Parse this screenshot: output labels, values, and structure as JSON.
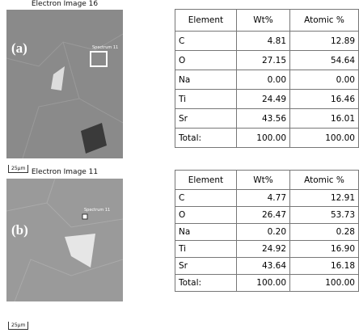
{
  "panels": [
    {
      "label": "(a)",
      "image": {
        "title": "Electron Image 16",
        "spectrum": "Spectrum 11",
        "scale": "25µm"
      },
      "table": {
        "header": [
          "Element",
          "Wt%",
          "Atomic %"
        ],
        "rows": [
          [
            "C",
            "4.81",
            "12.89"
          ],
          [
            "O",
            "27.15",
            "54.64"
          ],
          [
            "Na",
            "0.00",
            "0.00"
          ],
          [
            "Ti",
            "24.49",
            "16.46"
          ],
          [
            "Sr",
            "43.56",
            "16.01"
          ],
          [
            "Total:",
            "100.00",
            "100.00"
          ]
        ]
      }
    },
    {
      "label": "(b)",
      "image": {
        "title": "Electron Image 11",
        "spectrum": "Spectrum 11",
        "scale": "25µm"
      },
      "table": {
        "header": [
          "Element",
          "Wt%",
          "Atomic %"
        ],
        "rows": [
          [
            "C",
            "4.77",
            "12.91"
          ],
          [
            "O",
            "26.47",
            "53.73"
          ],
          [
            "Na",
            "0.20",
            "0.28"
          ],
          [
            "Ti",
            "24.92",
            "16.90"
          ],
          [
            "Sr",
            "43.64",
            "16.18"
          ],
          [
            "Total:",
            "100.00",
            "100.00"
          ]
        ]
      }
    }
  ]
}
